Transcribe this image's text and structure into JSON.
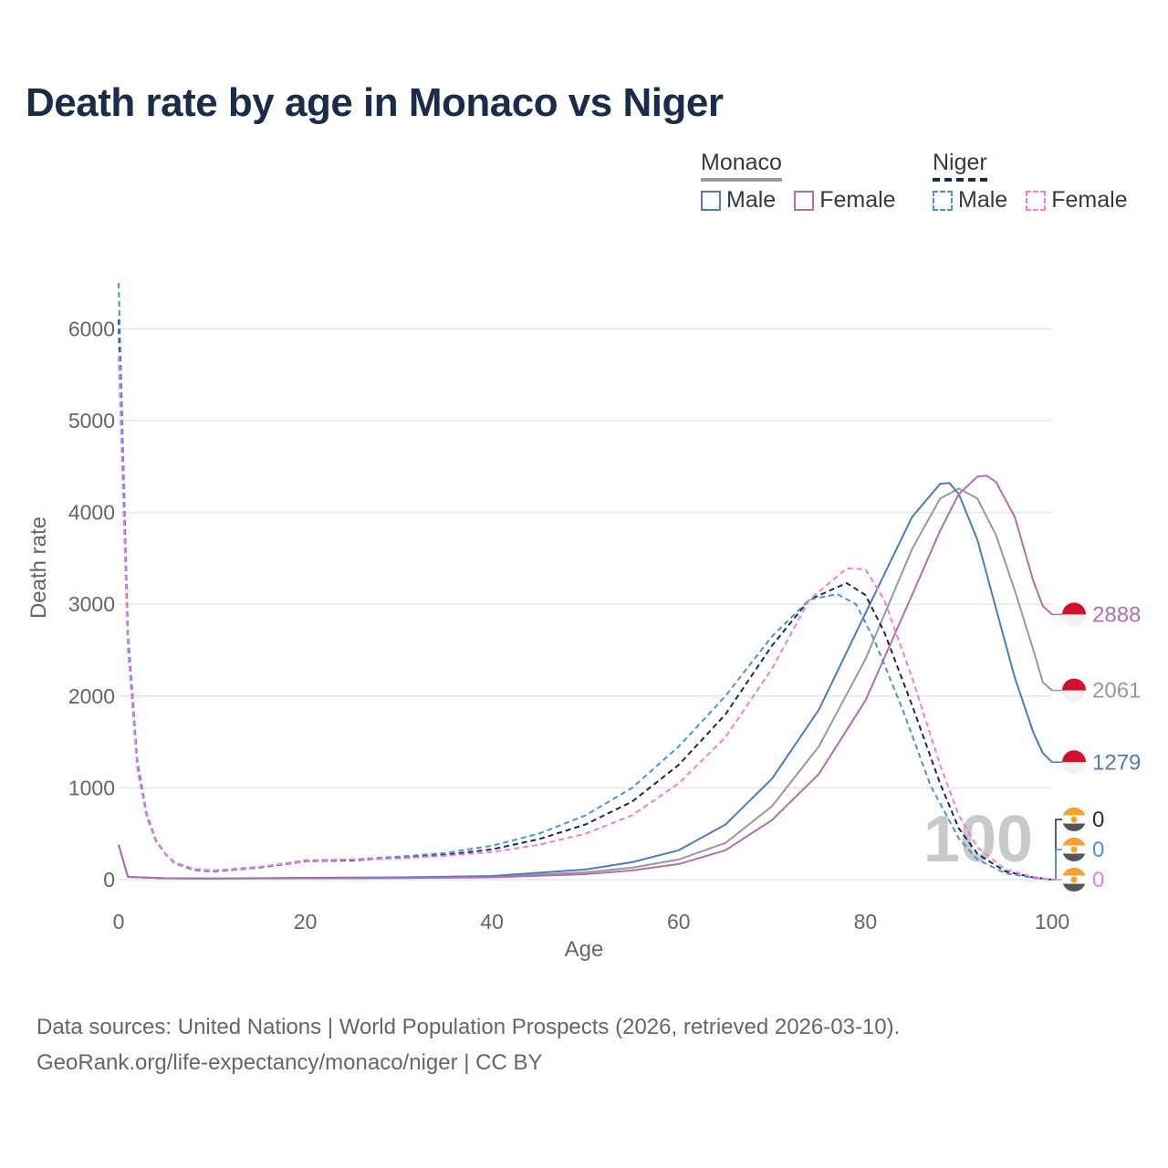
{
  "title": "Death rate by age in Monaco vs Niger",
  "legend": {
    "monaco_label": "Monaco",
    "niger_label": "Niger",
    "male_label": "Male",
    "female_label": "Female"
  },
  "chart_data": {
    "type": "line",
    "title": "Death rate by age in Monaco vs Niger",
    "xlabel": "Age",
    "ylabel": "Death rate",
    "xlim": [
      0,
      100
    ],
    "ylim": [
      0,
      6500
    ],
    "x_ticks": [
      0,
      20,
      40,
      60,
      80,
      100
    ],
    "y_ticks": [
      0,
      1000,
      2000,
      3000,
      4000,
      5000,
      6000
    ],
    "grid": true,
    "year_watermark": "100",
    "series": [
      {
        "name": "Monaco Total",
        "country": "Monaco",
        "color": "#999999",
        "dash": false,
        "points": [
          [
            0,
            380
          ],
          [
            1,
            30
          ],
          [
            5,
            15
          ],
          [
            10,
            12
          ],
          [
            20,
            18
          ],
          [
            30,
            20
          ],
          [
            40,
            30
          ],
          [
            50,
            80
          ],
          [
            55,
            130
          ],
          [
            60,
            220
          ],
          [
            65,
            400
          ],
          [
            70,
            800
          ],
          [
            75,
            1450
          ],
          [
            80,
            2400
          ],
          [
            85,
            3600
          ],
          [
            88,
            4150
          ],
          [
            90,
            4260
          ],
          [
            92,
            4150
          ],
          [
            94,
            3750
          ],
          [
            96,
            3150
          ],
          [
            98,
            2500
          ],
          [
            99,
            2150
          ],
          [
            100,
            2061
          ]
        ]
      },
      {
        "name": "Monaco Male",
        "country": "Monaco",
        "color": "#4e79c4",
        "dash": false,
        "points": [
          [
            0,
            380
          ],
          [
            1,
            30
          ],
          [
            5,
            15
          ],
          [
            10,
            12
          ],
          [
            20,
            20
          ],
          [
            30,
            25
          ],
          [
            40,
            40
          ],
          [
            50,
            110
          ],
          [
            55,
            190
          ],
          [
            60,
            320
          ],
          [
            65,
            600
          ],
          [
            70,
            1100
          ],
          [
            75,
            1850
          ],
          [
            80,
            2900
          ],
          [
            85,
            3950
          ],
          [
            88,
            4310
          ],
          [
            89,
            4320
          ],
          [
            90,
            4200
          ],
          [
            92,
            3700
          ],
          [
            94,
            2950
          ],
          [
            96,
            2200
          ],
          [
            98,
            1600
          ],
          [
            99,
            1379
          ],
          [
            100,
            1279
          ]
        ]
      },
      {
        "name": "Monaco Female",
        "country": "Monaco",
        "color": "#b26fb0",
        "dash": false,
        "points": [
          [
            0,
            380
          ],
          [
            1,
            30
          ],
          [
            5,
            15
          ],
          [
            10,
            12
          ],
          [
            20,
            15
          ],
          [
            30,
            18
          ],
          [
            40,
            25
          ],
          [
            50,
            60
          ],
          [
            55,
            100
          ],
          [
            60,
            170
          ],
          [
            65,
            320
          ],
          [
            70,
            650
          ],
          [
            75,
            1150
          ],
          [
            80,
            1950
          ],
          [
            85,
            3100
          ],
          [
            88,
            3800
          ],
          [
            90,
            4200
          ],
          [
            92,
            4390
          ],
          [
            93,
            4400
          ],
          [
            94,
            4330
          ],
          [
            96,
            3950
          ],
          [
            98,
            3250
          ],
          [
            99,
            2980
          ],
          [
            100,
            2888
          ]
        ]
      },
      {
        "name": "Niger Total",
        "country": "Niger",
        "color": "#1b2b4b",
        "dash": true,
        "points": [
          [
            0,
            6100
          ],
          [
            1,
            2600
          ],
          [
            2,
            1250
          ],
          [
            3,
            700
          ],
          [
            4,
            420
          ],
          [
            5,
            280
          ],
          [
            6,
            180
          ],
          [
            8,
            110
          ],
          [
            10,
            90
          ],
          [
            15,
            130
          ],
          [
            20,
            200
          ],
          [
            25,
            210
          ],
          [
            30,
            240
          ],
          [
            35,
            270
          ],
          [
            40,
            330
          ],
          [
            45,
            440
          ],
          [
            50,
            600
          ],
          [
            55,
            850
          ],
          [
            60,
            1250
          ],
          [
            65,
            1800
          ],
          [
            70,
            2550
          ],
          [
            74,
            3050
          ],
          [
            78,
            3230
          ],
          [
            80,
            3100
          ],
          [
            82,
            2700
          ],
          [
            85,
            1900
          ],
          [
            88,
            1050
          ],
          [
            90,
            560
          ],
          [
            92,
            280
          ],
          [
            95,
            90
          ],
          [
            98,
            25
          ],
          [
            100,
            0
          ]
        ]
      },
      {
        "name": "Niger Male",
        "country": "Niger",
        "color": "#4a90e2",
        "dash": true,
        "points": [
          [
            0,
            6500
          ],
          [
            1,
            2700
          ],
          [
            2,
            1300
          ],
          [
            3,
            720
          ],
          [
            4,
            430
          ],
          [
            5,
            280
          ],
          [
            6,
            180
          ],
          [
            8,
            105
          ],
          [
            10,
            85
          ],
          [
            15,
            130
          ],
          [
            20,
            210
          ],
          [
            25,
            220
          ],
          [
            30,
            250
          ],
          [
            35,
            290
          ],
          [
            40,
            370
          ],
          [
            45,
            500
          ],
          [
            50,
            700
          ],
          [
            55,
            1000
          ],
          [
            60,
            1450
          ],
          [
            65,
            2000
          ],
          [
            70,
            2650
          ],
          [
            74,
            3050
          ],
          [
            77,
            3110
          ],
          [
            79,
            3000
          ],
          [
            81,
            2600
          ],
          [
            84,
            1850
          ],
          [
            87,
            1020
          ],
          [
            90,
            450
          ],
          [
            92,
            220
          ],
          [
            95,
            70
          ],
          [
            98,
            20
          ],
          [
            100,
            0
          ]
        ]
      },
      {
        "name": "Niger Female",
        "country": "Niger",
        "color": "#f07ce0",
        "dash": true,
        "points": [
          [
            0,
            5700
          ],
          [
            1,
            2500
          ],
          [
            2,
            1200
          ],
          [
            3,
            680
          ],
          [
            4,
            410
          ],
          [
            5,
            280
          ],
          [
            6,
            190
          ],
          [
            8,
            120
          ],
          [
            10,
            100
          ],
          [
            15,
            140
          ],
          [
            20,
            200
          ],
          [
            25,
            220
          ],
          [
            30,
            230
          ],
          [
            35,
            260
          ],
          [
            40,
            300
          ],
          [
            45,
            380
          ],
          [
            50,
            500
          ],
          [
            55,
            700
          ],
          [
            60,
            1050
          ],
          [
            65,
            1550
          ],
          [
            70,
            2300
          ],
          [
            74,
            3050
          ],
          [
            78,
            3390
          ],
          [
            80,
            3380
          ],
          [
            82,
            3050
          ],
          [
            85,
            2200
          ],
          [
            88,
            1250
          ],
          [
            90,
            700
          ],
          [
            92,
            350
          ],
          [
            95,
            110
          ],
          [
            98,
            30
          ],
          [
            100,
            0
          ]
        ]
      }
    ],
    "end_labels": [
      {
        "series": "Monaco Female",
        "value": "2888",
        "color": "#b26fb0",
        "flag": "monaco"
      },
      {
        "series": "Monaco Total",
        "value": "2061",
        "color": "#999999",
        "flag": "monaco"
      },
      {
        "series": "Monaco Male",
        "value": "1279",
        "color": "#4e79c4",
        "flag": "monaco"
      },
      {
        "series": "Niger Total",
        "value": "0",
        "color": "#1b2b4b",
        "flag": "niger"
      },
      {
        "series": "Niger Male",
        "value": "0",
        "color": "#4a90e2",
        "flag": "niger"
      },
      {
        "series": "Niger Female",
        "value": "0",
        "color": "#f07ce0",
        "flag": "niger"
      }
    ]
  },
  "footer": {
    "line1": "Data sources: United Nations | World Population Prospects (2026, retrieved 2026-03-10).",
    "line2": "GeoRank.org/life-expectancy/monaco/niger | CC BY"
  }
}
